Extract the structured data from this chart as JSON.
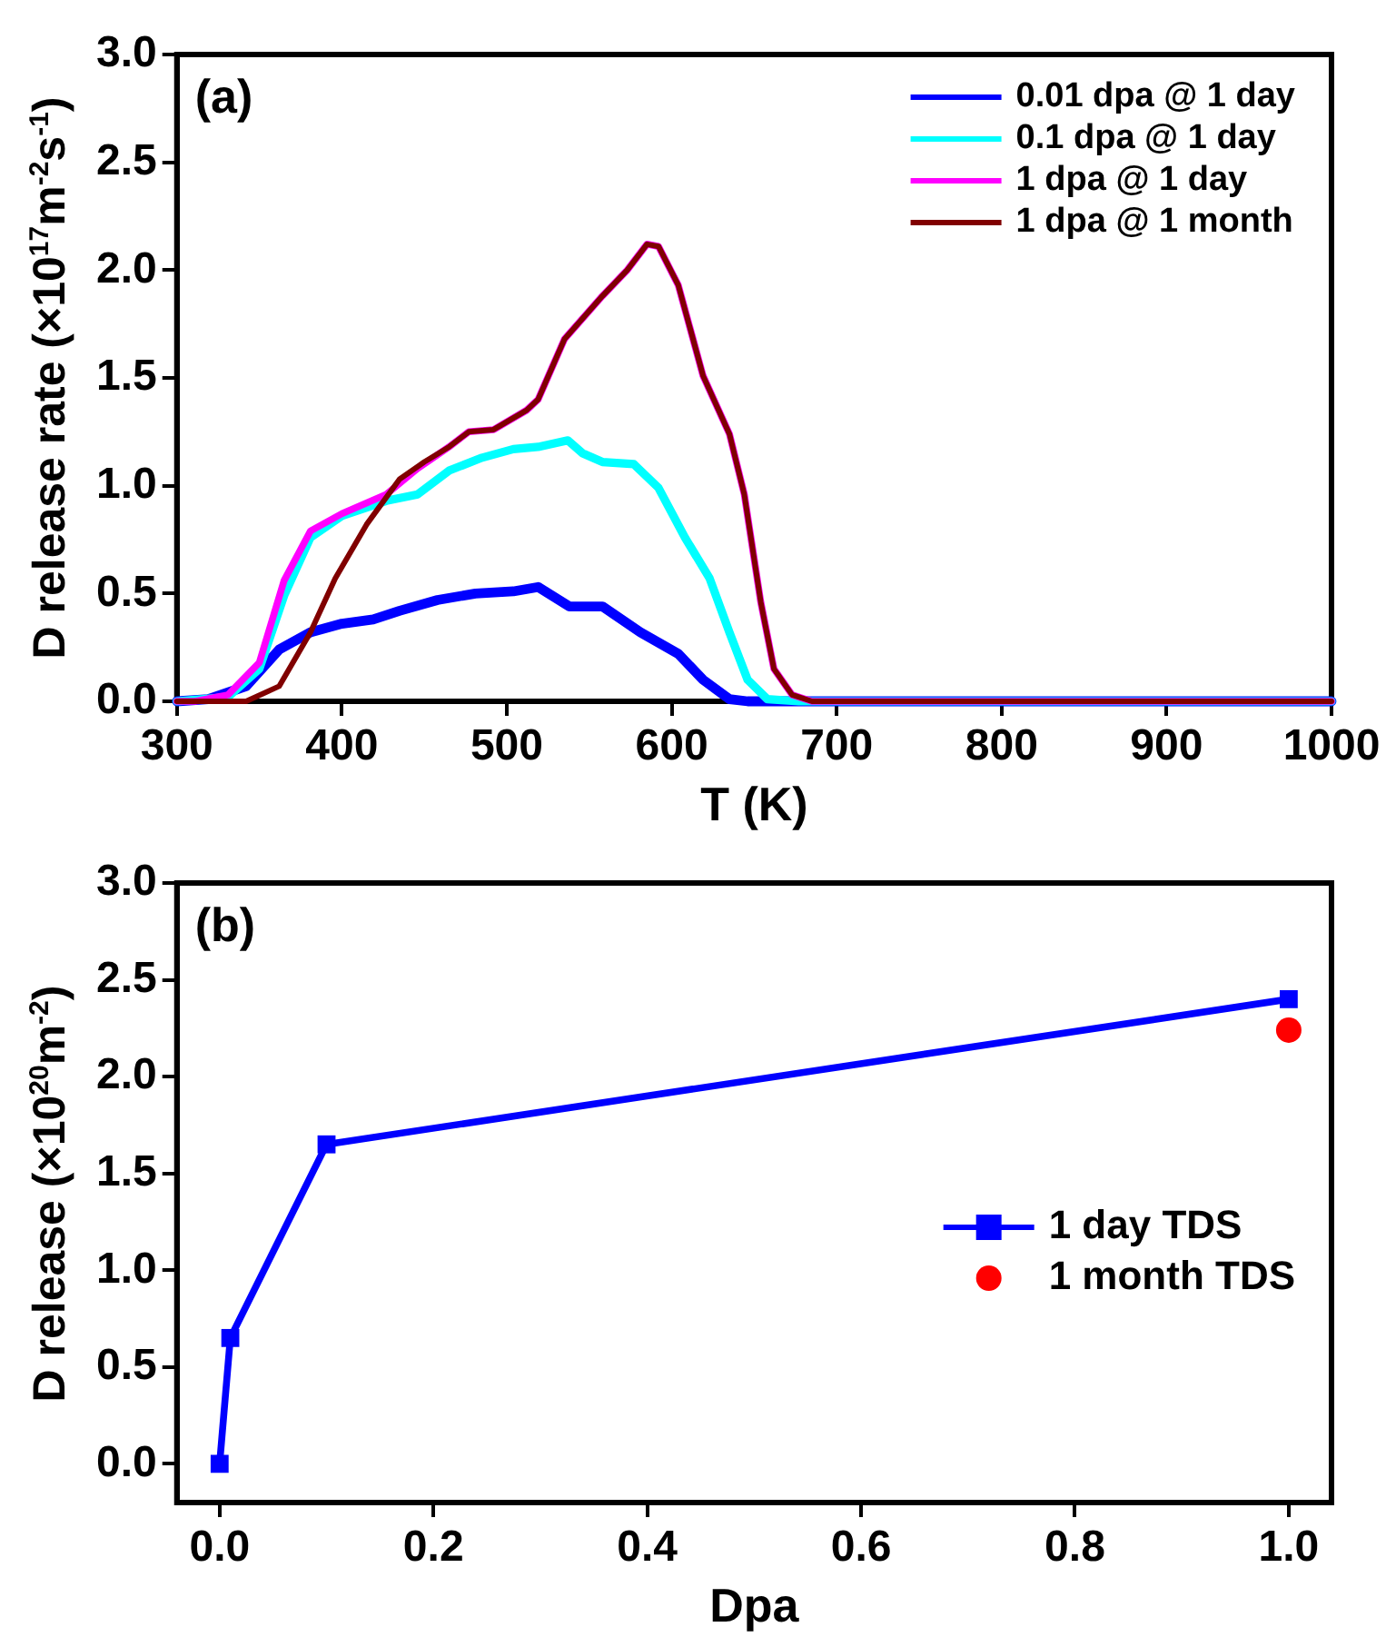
{
  "chart_data": [
    {
      "type": "line",
      "xlabel": "T (K)",
      "ylabel": "D release rate (×10$^{17}$m$^{-2}$s$^{-1}$)",
      "annotations": [
        "(a)"
      ],
      "xlim": [
        300,
        1000
      ],
      "ylim": [
        0,
        3.0
      ],
      "xticks": [
        300,
        400,
        500,
        600,
        700,
        800,
        900,
        1000
      ],
      "yticks": [
        {
          "value": 0,
          "label": "0.0"
        },
        {
          "value": 0.5,
          "label": "0.5"
        },
        {
          "value": 1,
          "label": "1.0"
        },
        {
          "value": 1.5,
          "label": "1.5"
        },
        {
          "value": 2,
          "label": "2.0"
        },
        {
          "value": 2.5,
          "label": "2.5"
        },
        {
          "value": 3,
          "label": "3.0"
        }
      ],
      "legend": "top right",
      "marker": "none",
      "line_style": "solid",
      "series": [
        {
          "name": "0.01 dpa @ 1 day",
          "color": "#0000ff",
          "x": [
            300,
            319,
            342,
            362,
            381,
            400,
            419,
            435,
            458,
            481,
            504,
            519,
            538,
            558,
            581,
            604,
            619,
            635,
            646,
            1000
          ],
          "values": [
            0,
            0.01,
            0.07,
            0.24,
            0.32,
            0.36,
            0.38,
            0.42,
            0.47,
            0.5,
            0.51,
            0.53,
            0.44,
            0.44,
            0.32,
            0.22,
            0.1,
            0.01,
            0,
            0
          ]
        },
        {
          "name": "0.1 dpa @ 1 day",
          "color": "#00ffff",
          "x": [
            300,
            331,
            350,
            365,
            381,
            400,
            427,
            446,
            465,
            485,
            504,
            519,
            537,
            546,
            558,
            577,
            592,
            608,
            623,
            635,
            646,
            658,
            677,
            1000
          ],
          "values": [
            0,
            0.02,
            0.15,
            0.49,
            0.76,
            0.86,
            0.93,
            0.96,
            1.07,
            1.13,
            1.17,
            1.18,
            1.21,
            1.15,
            1.11,
            1.1,
            0.99,
            0.76,
            0.57,
            0.32,
            0.1,
            0.01,
            0,
            0
          ]
        },
        {
          "name": "1 dpa @ 1 day",
          "color": "#ff00ff",
          "x": [
            300,
            311,
            331,
            350,
            365,
            381,
            400,
            427,
            446,
            465,
            477,
            492,
            512,
            519,
            535,
            558,
            573,
            585,
            592,
            604,
            619,
            635,
            644,
            654,
            662,
            673,
            685,
            1000
          ],
          "values": [
            0,
            0,
            0.03,
            0.18,
            0.56,
            0.79,
            0.87,
            0.96,
            1.08,
            1.18,
            1.25,
            1.26,
            1.35,
            1.4,
            1.68,
            1.88,
            2.0,
            2.12,
            2.11,
            1.93,
            1.51,
            1.24,
            0.96,
            0.46,
            0.15,
            0.03,
            0,
            0
          ]
        },
        {
          "name": "1 dpa @ 1 month",
          "color": "#800000",
          "x": [
            300,
            342,
            362,
            381,
            396,
            415,
            435,
            450,
            465,
            477,
            492,
            512,
            519,
            535,
            558,
            573,
            585,
            592,
            604,
            619,
            635,
            644,
            654,
            662,
            673,
            685,
            1000
          ],
          "values": [
            0,
            0,
            0.07,
            0.32,
            0.57,
            0.82,
            1.03,
            1.11,
            1.18,
            1.25,
            1.26,
            1.35,
            1.4,
            1.68,
            1.88,
            2.0,
            2.12,
            2.11,
            1.93,
            1.51,
            1.24,
            0.96,
            0.46,
            0.15,
            0.03,
            0,
            0
          ]
        }
      ]
    },
    {
      "type": "line",
      "xlabel": "Dpa",
      "ylabel": "D release (×10$^{20}$m$^{-2}$)",
      "annotations": [
        "(b)"
      ],
      "xlim": [
        -0.04,
        1.04
      ],
      "ylim": [
        -0.2,
        3.0
      ],
      "xticks": [
        {
          "value": 0,
          "label": "0.0"
        },
        {
          "value": 0.2,
          "label": "0.2"
        },
        {
          "value": 0.4,
          "label": "0.4"
        },
        {
          "value": 0.6,
          "label": "0.6"
        },
        {
          "value": 0.8,
          "label": "0.8"
        },
        {
          "value": 1,
          "label": "1.0"
        }
      ],
      "yticks": [
        {
          "value": 0,
          "label": "0.0"
        },
        {
          "value": 0.5,
          "label": "0.5"
        },
        {
          "value": 1,
          "label": "1.0"
        },
        {
          "value": 1.5,
          "label": "1.5"
        },
        {
          "value": 2,
          "label": "2.0"
        },
        {
          "value": 2.5,
          "label": "2.5"
        },
        {
          "value": 3,
          "label": "3.0"
        }
      ],
      "legend": "right",
      "line_style": "solid",
      "series": [
        {
          "name": "1 day TDS",
          "color": "#0000ff",
          "marker": "square",
          "x": [
            0,
            0.01,
            0.1,
            1.0
          ],
          "values": [
            0,
            0.65,
            1.65,
            2.4
          ]
        },
        {
          "name": "1 month TDS",
          "type": "scatter",
          "color": "#ff0000",
          "marker": "circle",
          "x": [
            1.0
          ],
          "values": [
            2.24
          ]
        }
      ]
    }
  ]
}
